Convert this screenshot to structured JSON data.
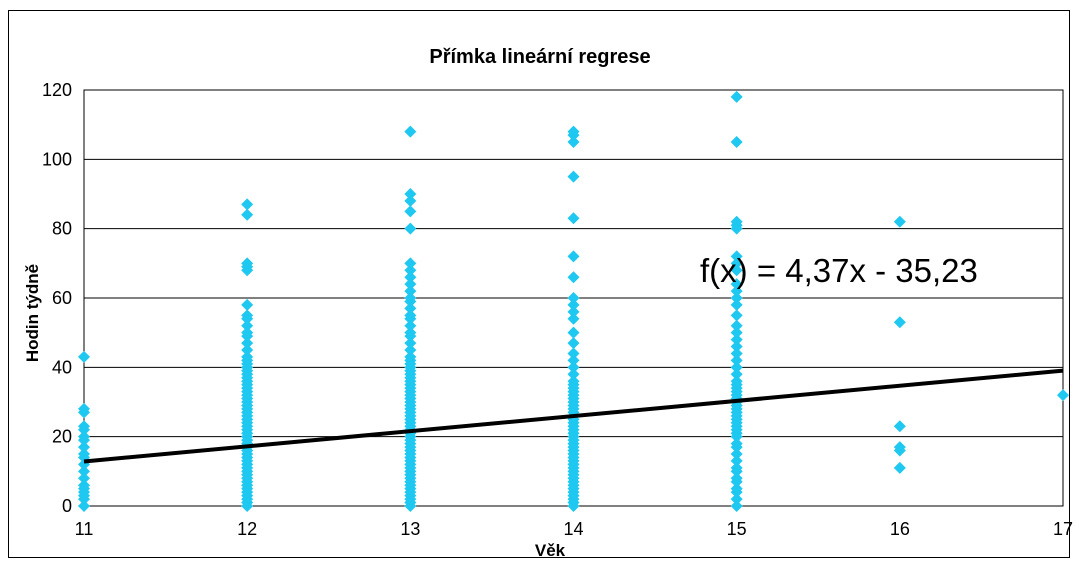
{
  "chart_data": {
    "type": "scatter",
    "title": "Přímka lineární regrese",
    "xlabel": "Věk",
    "ylabel": "Hodin týdně",
    "xlim": [
      11,
      17
    ],
    "ylim": [
      0,
      120
    ],
    "x_ticks": [
      "11",
      "12",
      "13",
      "14",
      "15",
      "16",
      "17"
    ],
    "y_ticks": [
      "0",
      "20",
      "40",
      "60",
      "80",
      "100",
      "120"
    ],
    "grid": true,
    "marker_color": "#1ec8f0",
    "line_color": "#000000",
    "trendline": {
      "slope": 4.37,
      "intercept": -35.23,
      "equation": "f(x) = 4,37x - 35,23"
    },
    "points": [
      [
        11,
        0
      ],
      [
        11,
        2
      ],
      [
        11,
        3
      ],
      [
        11,
        4
      ],
      [
        11,
        5
      ],
      [
        11,
        6
      ],
      [
        11,
        8
      ],
      [
        11,
        10
      ],
      [
        11,
        12
      ],
      [
        11,
        14
      ],
      [
        11,
        15
      ],
      [
        11,
        17
      ],
      [
        11,
        19
      ],
      [
        11,
        20
      ],
      [
        11,
        22
      ],
      [
        11,
        23
      ],
      [
        11,
        27
      ],
      [
        11,
        28
      ],
      [
        11,
        43
      ],
      [
        12,
        0
      ],
      [
        12,
        1
      ],
      [
        12,
        2
      ],
      [
        12,
        3
      ],
      [
        12,
        4
      ],
      [
        12,
        5
      ],
      [
        12,
        6
      ],
      [
        12,
        7
      ],
      [
        12,
        8
      ],
      [
        12,
        9
      ],
      [
        12,
        10
      ],
      [
        12,
        11
      ],
      [
        12,
        12
      ],
      [
        12,
        13
      ],
      [
        12,
        14
      ],
      [
        12,
        15
      ],
      [
        12,
        16
      ],
      [
        12,
        17
      ],
      [
        12,
        18
      ],
      [
        12,
        19
      ],
      [
        12,
        20
      ],
      [
        12,
        21
      ],
      [
        12,
        22
      ],
      [
        12,
        23
      ],
      [
        12,
        24
      ],
      [
        12,
        25
      ],
      [
        12,
        26
      ],
      [
        12,
        27
      ],
      [
        12,
        28
      ],
      [
        12,
        29
      ],
      [
        12,
        30
      ],
      [
        12,
        31
      ],
      [
        12,
        32
      ],
      [
        12,
        33
      ],
      [
        12,
        34
      ],
      [
        12,
        35
      ],
      [
        12,
        36
      ],
      [
        12,
        37
      ],
      [
        12,
        38
      ],
      [
        12,
        39
      ],
      [
        12,
        40
      ],
      [
        12,
        41
      ],
      [
        12,
        42
      ],
      [
        12,
        43
      ],
      [
        12,
        45
      ],
      [
        12,
        47
      ],
      [
        12,
        49
      ],
      [
        12,
        50
      ],
      [
        12,
        52
      ],
      [
        12,
        54
      ],
      [
        12,
        55
      ],
      [
        12,
        58
      ],
      [
        12,
        68
      ],
      [
        12,
        69
      ],
      [
        12,
        70
      ],
      [
        12,
        84
      ],
      [
        12,
        87
      ],
      [
        13,
        0
      ],
      [
        13,
        1
      ],
      [
        13,
        2
      ],
      [
        13,
        3
      ],
      [
        13,
        4
      ],
      [
        13,
        5
      ],
      [
        13,
        6
      ],
      [
        13,
        7
      ],
      [
        13,
        8
      ],
      [
        13,
        9
      ],
      [
        13,
        10
      ],
      [
        13,
        11
      ],
      [
        13,
        12
      ],
      [
        13,
        13
      ],
      [
        13,
        14
      ],
      [
        13,
        15
      ],
      [
        13,
        16
      ],
      [
        13,
        17
      ],
      [
        13,
        18
      ],
      [
        13,
        19
      ],
      [
        13,
        20
      ],
      [
        13,
        21
      ],
      [
        13,
        22
      ],
      [
        13,
        23
      ],
      [
        13,
        24
      ],
      [
        13,
        25
      ],
      [
        13,
        26
      ],
      [
        13,
        27
      ],
      [
        13,
        28
      ],
      [
        13,
        29
      ],
      [
        13,
        30
      ],
      [
        13,
        31
      ],
      [
        13,
        32
      ],
      [
        13,
        33
      ],
      [
        13,
        34
      ],
      [
        13,
        35
      ],
      [
        13,
        36
      ],
      [
        13,
        37
      ],
      [
        13,
        38
      ],
      [
        13,
        39
      ],
      [
        13,
        40
      ],
      [
        13,
        41
      ],
      [
        13,
        42
      ],
      [
        13,
        43
      ],
      [
        13,
        45
      ],
      [
        13,
        47
      ],
      [
        13,
        49
      ],
      [
        13,
        50
      ],
      [
        13,
        52
      ],
      [
        13,
        54
      ],
      [
        13,
        55
      ],
      [
        13,
        57
      ],
      [
        13,
        59
      ],
      [
        13,
        60
      ],
      [
        13,
        62
      ],
      [
        13,
        64
      ],
      [
        13,
        66
      ],
      [
        13,
        68
      ],
      [
        13,
        70
      ],
      [
        13,
        80
      ],
      [
        13,
        85
      ],
      [
        13,
        88
      ],
      [
        13,
        90
      ],
      [
        13,
        108
      ],
      [
        14,
        0
      ],
      [
        14,
        1
      ],
      [
        14,
        2
      ],
      [
        14,
        3
      ],
      [
        14,
        4
      ],
      [
        14,
        5
      ],
      [
        14,
        6
      ],
      [
        14,
        7
      ],
      [
        14,
        8
      ],
      [
        14,
        9
      ],
      [
        14,
        10
      ],
      [
        14,
        11
      ],
      [
        14,
        12
      ],
      [
        14,
        13
      ],
      [
        14,
        14
      ],
      [
        14,
        15
      ],
      [
        14,
        16
      ],
      [
        14,
        17
      ],
      [
        14,
        18
      ],
      [
        14,
        19
      ],
      [
        14,
        20
      ],
      [
        14,
        21
      ],
      [
        14,
        22
      ],
      [
        14,
        23
      ],
      [
        14,
        24
      ],
      [
        14,
        25
      ],
      [
        14,
        26
      ],
      [
        14,
        27
      ],
      [
        14,
        28
      ],
      [
        14,
        29
      ],
      [
        14,
        30
      ],
      [
        14,
        31
      ],
      [
        14,
        32
      ],
      [
        14,
        33
      ],
      [
        14,
        34
      ],
      [
        14,
        35
      ],
      [
        14,
        36
      ],
      [
        14,
        38
      ],
      [
        14,
        40
      ],
      [
        14,
        42
      ],
      [
        14,
        44
      ],
      [
        14,
        47
      ],
      [
        14,
        50
      ],
      [
        14,
        54
      ],
      [
        14,
        56
      ],
      [
        14,
        58
      ],
      [
        14,
        60
      ],
      [
        14,
        66
      ],
      [
        14,
        72
      ],
      [
        14,
        83
      ],
      [
        14,
        95
      ],
      [
        14,
        105
      ],
      [
        14,
        107
      ],
      [
        14,
        108
      ],
      [
        15,
        0
      ],
      [
        15,
        2
      ],
      [
        15,
        4
      ],
      [
        15,
        5
      ],
      [
        15,
        7
      ],
      [
        15,
        8
      ],
      [
        15,
        10
      ],
      [
        15,
        11
      ],
      [
        15,
        13
      ],
      [
        15,
        15
      ],
      [
        15,
        17
      ],
      [
        15,
        18
      ],
      [
        15,
        20
      ],
      [
        15,
        21
      ],
      [
        15,
        22
      ],
      [
        15,
        23
      ],
      [
        15,
        24
      ],
      [
        15,
        25
      ],
      [
        15,
        26
      ],
      [
        15,
        27
      ],
      [
        15,
        28
      ],
      [
        15,
        29
      ],
      [
        15,
        30
      ],
      [
        15,
        31
      ],
      [
        15,
        32
      ],
      [
        15,
        33
      ],
      [
        15,
        34
      ],
      [
        15,
        35
      ],
      [
        15,
        36
      ],
      [
        15,
        38
      ],
      [
        15,
        40
      ],
      [
        15,
        42
      ],
      [
        15,
        44
      ],
      [
        15,
        46
      ],
      [
        15,
        48
      ],
      [
        15,
        50
      ],
      [
        15,
        52
      ],
      [
        15,
        55
      ],
      [
        15,
        58
      ],
      [
        15,
        60
      ],
      [
        15,
        62
      ],
      [
        15,
        64
      ],
      [
        15,
        68
      ],
      [
        15,
        70
      ],
      [
        15,
        72
      ],
      [
        15,
        80
      ],
      [
        15,
        81
      ],
      [
        15,
        82
      ],
      [
        15,
        105
      ],
      [
        15,
        118
      ],
      [
        16,
        11
      ],
      [
        16,
        16
      ],
      [
        16,
        17
      ],
      [
        16,
        23
      ],
      [
        16,
        53
      ],
      [
        16,
        82
      ],
      [
        17,
        32
      ]
    ]
  }
}
